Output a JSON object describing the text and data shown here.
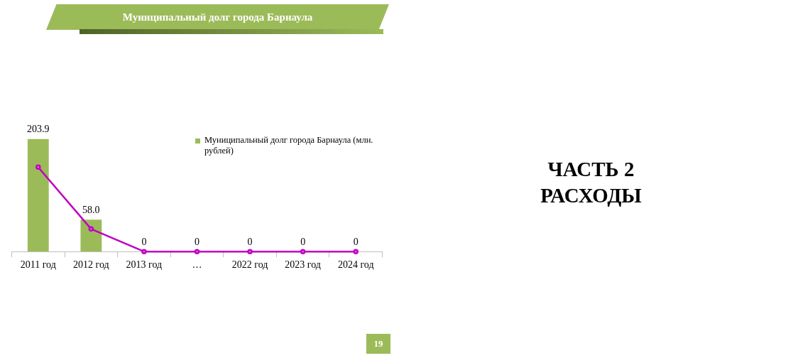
{
  "chart_data": {
    "type": "bar",
    "title": "Муниципальный долг города Барнаула",
    "categories": [
      "2011 год",
      "2012 год",
      "2013 год",
      "…",
      "2022 год",
      "2023 год",
      "2024 год"
    ],
    "series": [
      {
        "name": "Муниципальный долг города Барнаула (млн. рублей)",
        "color": "#9bbb59",
        "values": [
          203.9,
          58.0,
          0,
          0,
          0,
          0,
          0
        ],
        "value_labels": [
          "203.9",
          "58.0",
          "0",
          "0",
          "0",
          "0",
          "0"
        ]
      },
      {
        "type": "line",
        "color": "#c000c0",
        "values": [
          153,
          41,
          0,
          0,
          0,
          0,
          0
        ]
      }
    ],
    "marker": "circle",
    "legend": "top right",
    "grid": false,
    "annotations": [
      "ЧАСТЬ 2",
      "РАСХОДЫ",
      "19"
    ]
  }
}
